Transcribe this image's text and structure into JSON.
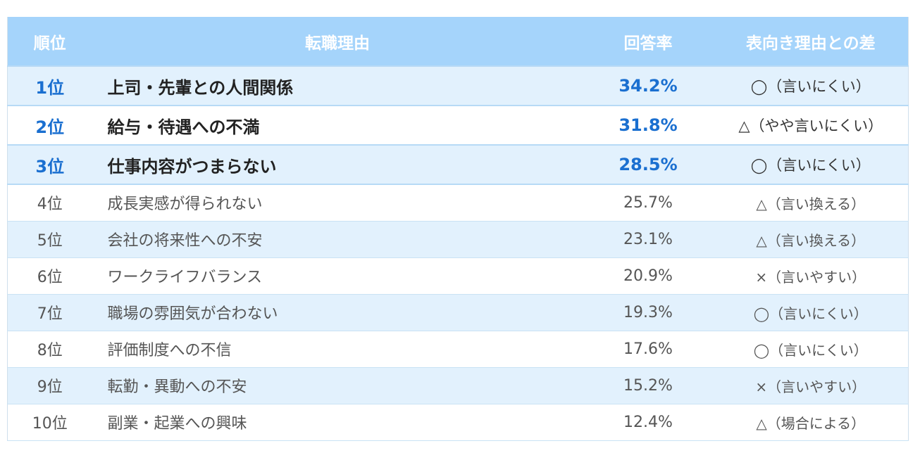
{
  "headers": {
    "rank": "順位",
    "reason": "転職理由",
    "rate": "回答率",
    "diff": "表向き理由との差"
  },
  "rows": [
    {
      "rank": "1位",
      "reason": "上司・先輩との人間関係",
      "rate": "34.2%",
      "diff": "◯（言いにくい）"
    },
    {
      "rank": "2位",
      "reason": "給与・待遇への不満",
      "rate": "31.8%",
      "diff": "△（やや言いにくい）"
    },
    {
      "rank": "3位",
      "reason": "仕事内容がつまらない",
      "rate": "28.5%",
      "diff": "◯（言いにくい）"
    },
    {
      "rank": "4位",
      "reason": "成長実感が得られない",
      "rate": "25.7%",
      "diff": "△（言い換える）"
    },
    {
      "rank": "5位",
      "reason": "会社の将来性への不安",
      "rate": "23.1%",
      "diff": "△（言い換える）"
    },
    {
      "rank": "6位",
      "reason": "ワークライフバランス",
      "rate": "20.9%",
      "diff": "×（言いやすい）"
    },
    {
      "rank": "7位",
      "reason": "職場の雰囲気が合わない",
      "rate": "19.3%",
      "diff": "◯（言いにくい）"
    },
    {
      "rank": "8位",
      "reason": "評価制度への不信",
      "rate": "17.6%",
      "diff": "◯（言いにくい）"
    },
    {
      "rank": "9位",
      "reason": "転勤・異動への不安",
      "rate": "15.2%",
      "diff": "×（言いやすい）"
    },
    {
      "rank": "10位",
      "reason": "副業・起業への興味",
      "rate": "12.4%",
      "diff": "△（場合による）"
    }
  ],
  "colors": {
    "header_bg": "#a5d4fb",
    "shade_row_bg": "#e2f1fd",
    "accent_blue": "#1a6fd0"
  }
}
